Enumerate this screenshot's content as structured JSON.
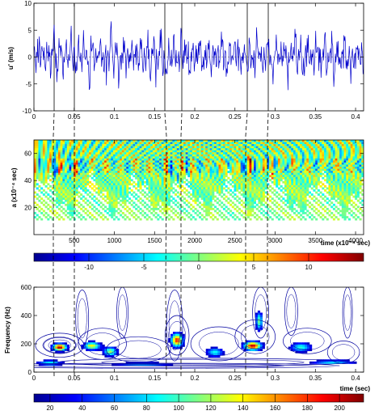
{
  "chart_data": [
    {
      "type": "line",
      "ylabel": "u' (m/s)",
      "xlim": [
        0,
        0.41
      ],
      "ylim": [
        -10,
        10
      ],
      "x_ticks": [
        "0",
        "0.05",
        "0.1",
        "0.15",
        "0.2",
        "0.25",
        "0.3",
        "0.35",
        "0.4"
      ],
      "y_ticks": [
        "-10",
        "-5",
        "0",
        "5",
        "10"
      ],
      "series": [
        {
          "color": "#0000cc",
          "values": [
            0.2,
            -1.1,
            0.6,
            1.8,
            -0.4,
            2.6,
            -1.9,
            0.3,
            1.1,
            -2.4,
            0.8,
            3.9,
            -0.6,
            -1.5,
            2.1,
            0.4,
            -2.8,
            1.3,
            0.2,
            -0.9,
            4.3,
            -1.2,
            0.7,
            -3.1,
            1.6,
            0.1,
            -0.5,
            2.9,
            -1.7,
            0.9,
            -4.6,
            1.4,
            2.2,
            -0.8,
            0.3,
            -1.9,
            3.4,
            -0.2,
            -2.6,
            1.1,
            0.5,
            -1.3,
            5.1,
            -2.0,
            0.6,
            1.7,
            -3.5,
            0.4,
            -0.7,
            2.5,
            -1.0,
            0.8,
            -2.2,
            3.0,
            0.2,
            -1.6,
            1.2,
            -0.3,
            4.0,
            -2.7,
            0.9,
            -0.4,
            1.9,
            -3.8,
            0.7,
            2.3,
            -1.1,
            0.5,
            -0.9,
            3.6,
            -2.1,
            1.0,
            -5.2,
            1.8,
            0.3,
            -1.4,
            2.7,
            -0.6,
            0.4,
            -2.5,
            4.7,
            -1.3,
            0.8,
            -0.2,
            1.5,
            -3.2,
            2.0,
            -0.7,
            0.6,
            -1.8,
            3.3,
            0.1,
            -2.4,
            1.4,
            -0.5,
            2.8,
            -4.1,
            0.9,
            1.6,
            -1.2,
            0.3,
            -0.8,
            5.4,
            -1.9,
            0.7,
            -2.9,
            1.3,
            0.2,
            -0.6,
            2.4,
            -1.5,
            3.7,
            -0.4,
            -2.0,
            1.1,
            0.5,
            -3.6,
            2.2,
            -0.9,
            0.8,
            -1.7,
            4.1,
            -0.3,
            1.2,
            -2.6,
            0.6,
            -0.2,
            3.1,
            -1.4,
            0.9,
            -4.4,
            1.7,
            2.5,
            -1.0,
            0.4,
            -1.6,
            2.9,
            -0.5,
            -2.3,
            1.5,
            0.7,
            -1.1,
            4.5,
            -2.4,
            0.2,
            1.9,
            -3.0,
            0.6,
            -0.8,
            2.6,
            -1.2,
            0.3,
            -2.0,
            3.5,
            0.5,
            -1.8,
            1.0,
            -0.4,
            3.8,
            -2.9,
            1.2,
            -0.6,
            2.1,
            -4.0,
            0.8,
            2.0,
            -1.3,
            0.4,
            -0.7,
            3.2,
            -2.2,
            1.1,
            -3.4,
            1.6,
            0.2,
            -1.5,
            2.4,
            -0.3,
            0.9,
            -2.8
          ]
        }
      ]
    },
    {
      "type": "heatmap",
      "ylabel": "a (x10⁻⁴ sec)",
      "xlabel": "time (x10⁻⁴ sec)",
      "xlim": [
        0,
        4100
      ],
      "ylim": [
        0,
        70
      ],
      "x_ticks": [
        "500",
        "1000",
        "1500",
        "2000",
        "2500",
        "3000",
        "3500",
        "4000"
      ],
      "y_ticks": [
        "20",
        "40",
        "60"
      ],
      "colorbar": {
        "min": -15,
        "max": 15,
        "ticks": [
          "-10",
          "-5",
          "0",
          "5",
          "10"
        ]
      }
    },
    {
      "type": "heatmap",
      "ylabel": "Frequency (Hz)",
      "xlabel": "time (sec)",
      "xlim": [
        0,
        0.41
      ],
      "ylim": [
        0,
        600
      ],
      "x_ticks": [
        "0",
        "0.05",
        "0.1",
        "0.15",
        "0.2",
        "0.25",
        "0.3",
        "0.35",
        "0.4"
      ],
      "y_ticks": [
        "0",
        "200",
        "400",
        "600"
      ],
      "colorbar": {
        "min": 10,
        "max": 215,
        "ticks": [
          "20",
          "40",
          "60",
          "80",
          "100",
          "120",
          "140",
          "160",
          "180",
          "200"
        ]
      }
    }
  ]
}
